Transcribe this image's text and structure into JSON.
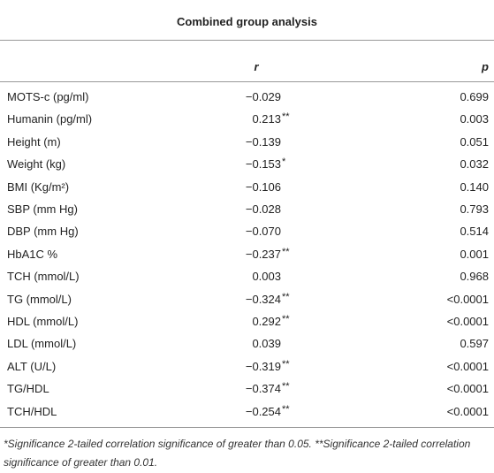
{
  "table": {
    "title": "Combined group analysis",
    "columns": [
      "r",
      "p"
    ],
    "rows": [
      {
        "label": "MOTS-c (pg/ml)",
        "r": "−0.029",
        "p": "0.699"
      },
      {
        "label": "Humanin (pg/ml)",
        "r": "0.213",
        "sig": "**",
        "p": "0.003"
      },
      {
        "label": "Height (m)",
        "r": "−0.139",
        "p": "0.051"
      },
      {
        "label": "Weight (kg)",
        "r": "−0.153",
        "sig": "*",
        "p": "0.032"
      },
      {
        "label": "BMI (Kg/m²)",
        "r": "−0.106",
        "p": "0.140"
      },
      {
        "label": "SBP (mm Hg)",
        "r": "−0.028",
        "p": "0.793"
      },
      {
        "label": "DBP (mm Hg)",
        "r": "−0.070",
        "p": "0.514"
      },
      {
        "label": "HbA1C %",
        "r": "−0.237",
        "sig": "**",
        "p": "0.001"
      },
      {
        "label": "TCH (mmol/L)",
        "r": "0.003",
        "p": "0.968"
      },
      {
        "label": "TG (mmol/L)",
        "r": "−0.324",
        "sig": "**",
        "p": "<0.0001"
      },
      {
        "label": "HDL (mmol/L)",
        "r": "0.292",
        "sig": "**",
        "p": "<0.0001"
      },
      {
        "label": "LDL (mmol/L)",
        "r": "0.039",
        "p": "0.597"
      },
      {
        "label": "ALT (U/L)",
        "r": "−0.319",
        "sig": "**",
        "p": "<0.0001"
      },
      {
        "label": "TG/HDL",
        "r": "−0.374",
        "sig": "**",
        "p": "<0.0001"
      },
      {
        "label": "TCH/HDL",
        "r": "−0.254",
        "sig": "**",
        "p": "<0.0001"
      }
    ],
    "footnote": "*Significance 2-tailed correlation significance of greater than 0.05. **Significance 2-tailed correlation significance of greater than 0.01."
  }
}
